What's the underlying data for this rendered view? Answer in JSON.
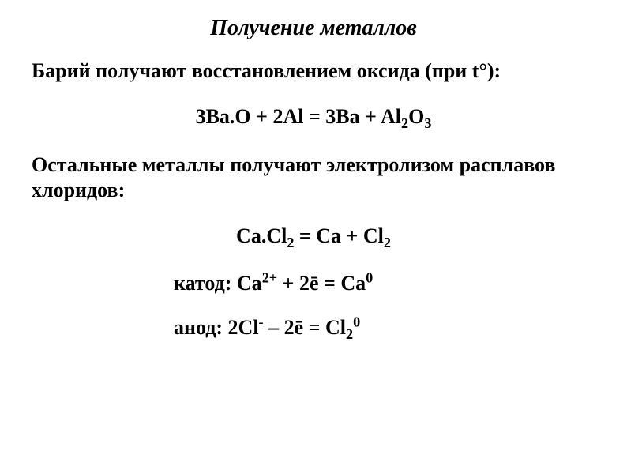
{
  "title": "Получение металлов",
  "para1": "Барий получают восстановлением оксида (при t°):",
  "eq1_html": "3Ba.O + 2Al = 3Ba + Al<sub>2</sub>O<sub>3</sub>",
  "para2": "Остальные металлы получают электролизом расплавов хлоридов:",
  "eq2_html": "Ca.Cl<sub>2</sub> = Ca + Cl<sub>2</sub>",
  "eq3_html": "катод: Ca<sup>2+</sup> + 2ē = Ca<sup>0</sup>",
  "eq4_html": "анод: 2Cl<sup>-</sup> – 2ē = Cl<sub>2</sub><sup>0</sup>",
  "colors": {
    "text": "#000000",
    "background": "#ffffff"
  },
  "fonts": {
    "family": "Times New Roman",
    "title_size_pt": 21,
    "body_size_pt": 20
  }
}
